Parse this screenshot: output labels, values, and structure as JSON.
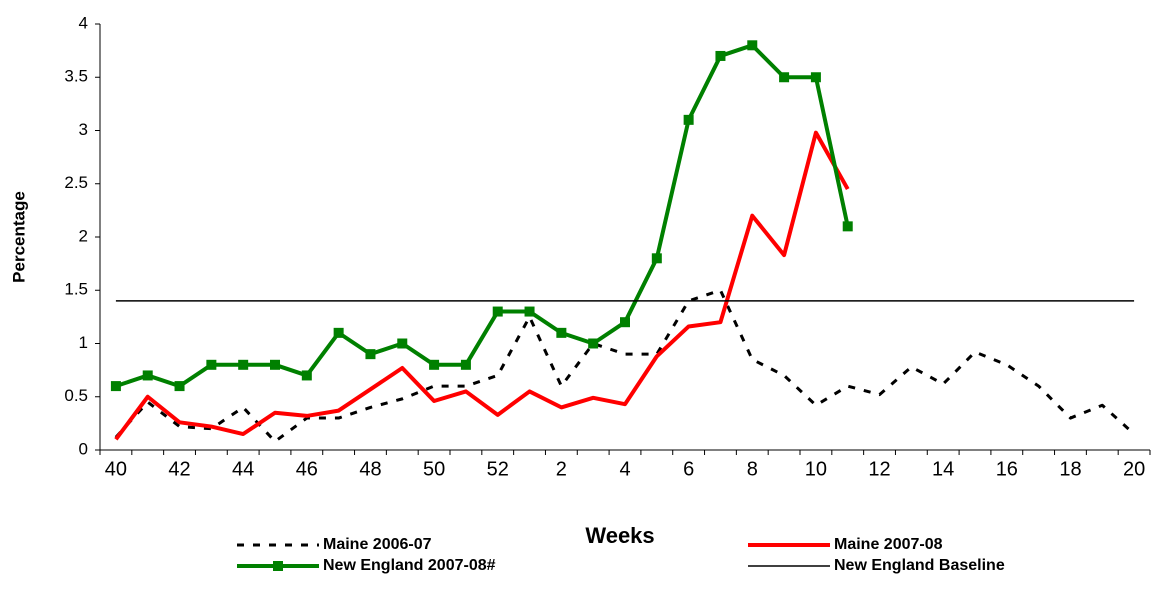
{
  "chart_data": {
    "type": "line",
    "x_label": "Weeks",
    "y_label": "Percentage",
    "categories": [
      "40",
      null,
      "42",
      null,
      "44",
      null,
      "46",
      null,
      "48",
      null,
      "50",
      null,
      "52",
      null,
      "2",
      null,
      "4",
      null,
      "6",
      null,
      "8",
      null,
      "10",
      null,
      "12",
      null,
      "14",
      null,
      "16",
      null,
      "18",
      null,
      "20"
    ],
    "series": [
      {
        "name": "Maine 2006-07",
        "color": "#000000",
        "style": "dashed",
        "marker": "none",
        "values": [
          0.12,
          0.45,
          0.22,
          0.2,
          0.4,
          0.08,
          0.3,
          0.3,
          0.4,
          0.48,
          0.6,
          0.6,
          0.7,
          1.25,
          0.6,
          1.0,
          0.9,
          0.9,
          1.4,
          1.5,
          0.85,
          0.7,
          0.42,
          0.6,
          0.52,
          0.78,
          0.62,
          0.92,
          0.8,
          0.6,
          0.3,
          0.42,
          0.15
        ]
      },
      {
        "name": "Maine 2007-08",
        "color": "#ff0000",
        "style": "solid",
        "marker": "none",
        "values": [
          0.1,
          0.5,
          0.26,
          0.22,
          0.15,
          0.35,
          0.32,
          0.37,
          0.57,
          0.77,
          0.46,
          0.55,
          0.33,
          0.55,
          0.4,
          0.49,
          0.43,
          0.88,
          1.16,
          1.2,
          2.2,
          1.83,
          2.98,
          2.45,
          null,
          null,
          null,
          null,
          null,
          null,
          null,
          null,
          null
        ]
      },
      {
        "name": "New England 2007-08#",
        "color": "#008000",
        "style": "solid",
        "marker": "square",
        "values": [
          0.6,
          0.7,
          0.6,
          0.8,
          0.8,
          0.8,
          0.7,
          1.1,
          0.9,
          1.0,
          0.8,
          0.8,
          1.3,
          1.3,
          1.1,
          1.0,
          1.2,
          1.8,
          3.1,
          3.7,
          3.8,
          3.5,
          3.5,
          2.1,
          null,
          null,
          null,
          null,
          null,
          null,
          null,
          null,
          null
        ]
      },
      {
        "name": "New England Baseline",
        "color": "#000000",
        "style": "thin",
        "marker": "none",
        "values": [
          1.4,
          1.4,
          1.4,
          1.4,
          1.4,
          1.4,
          1.4,
          1.4,
          1.4,
          1.4,
          1.4,
          1.4,
          1.4,
          1.4,
          1.4,
          1.4,
          1.4,
          1.4,
          1.4,
          1.4,
          1.4,
          1.4,
          1.4,
          1.4,
          1.4,
          1.4,
          1.4,
          1.4,
          1.4,
          1.4,
          1.4,
          1.4,
          1.4
        ]
      }
    ],
    "ylim": [
      0,
      4
    ],
    "yticks": [
      0,
      0.5,
      1,
      1.5,
      2,
      2.5,
      3,
      3.5,
      4
    ],
    "grid": false
  }
}
